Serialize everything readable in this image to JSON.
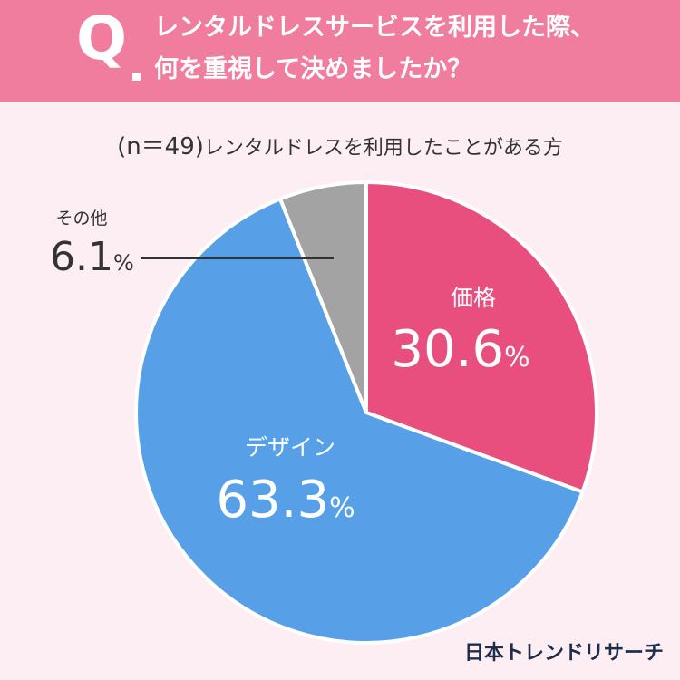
{
  "header": {
    "q_mark": "Q",
    "line1": "レンタルドレスサービスを利用した際、",
    "line2": "何を重視して決めましたか？"
  },
  "subtitle": {
    "n_label": "(n＝49)",
    "text": "レンタルドレスを利用したことがある方"
  },
  "brand": "日本トレンドリサーチ",
  "colors": {
    "header_bg": "#f07c9e",
    "background": "#fdeef3",
    "price": "#e84f7e",
    "design": "#57a0e8",
    "other": "#a3a3a3"
  },
  "chart_data": {
    "type": "pie",
    "unit": "%",
    "slices": [
      {
        "label": "価格",
        "value": 30.6,
        "value_text": "30.6",
        "color": "#e84f7e"
      },
      {
        "label": "デザイン",
        "value": 63.3,
        "value_text": "63.3",
        "color": "#57a0e8"
      },
      {
        "label": "その他",
        "value": 6.1,
        "value_text": "6.1",
        "color": "#a3a3a3"
      }
    ]
  }
}
